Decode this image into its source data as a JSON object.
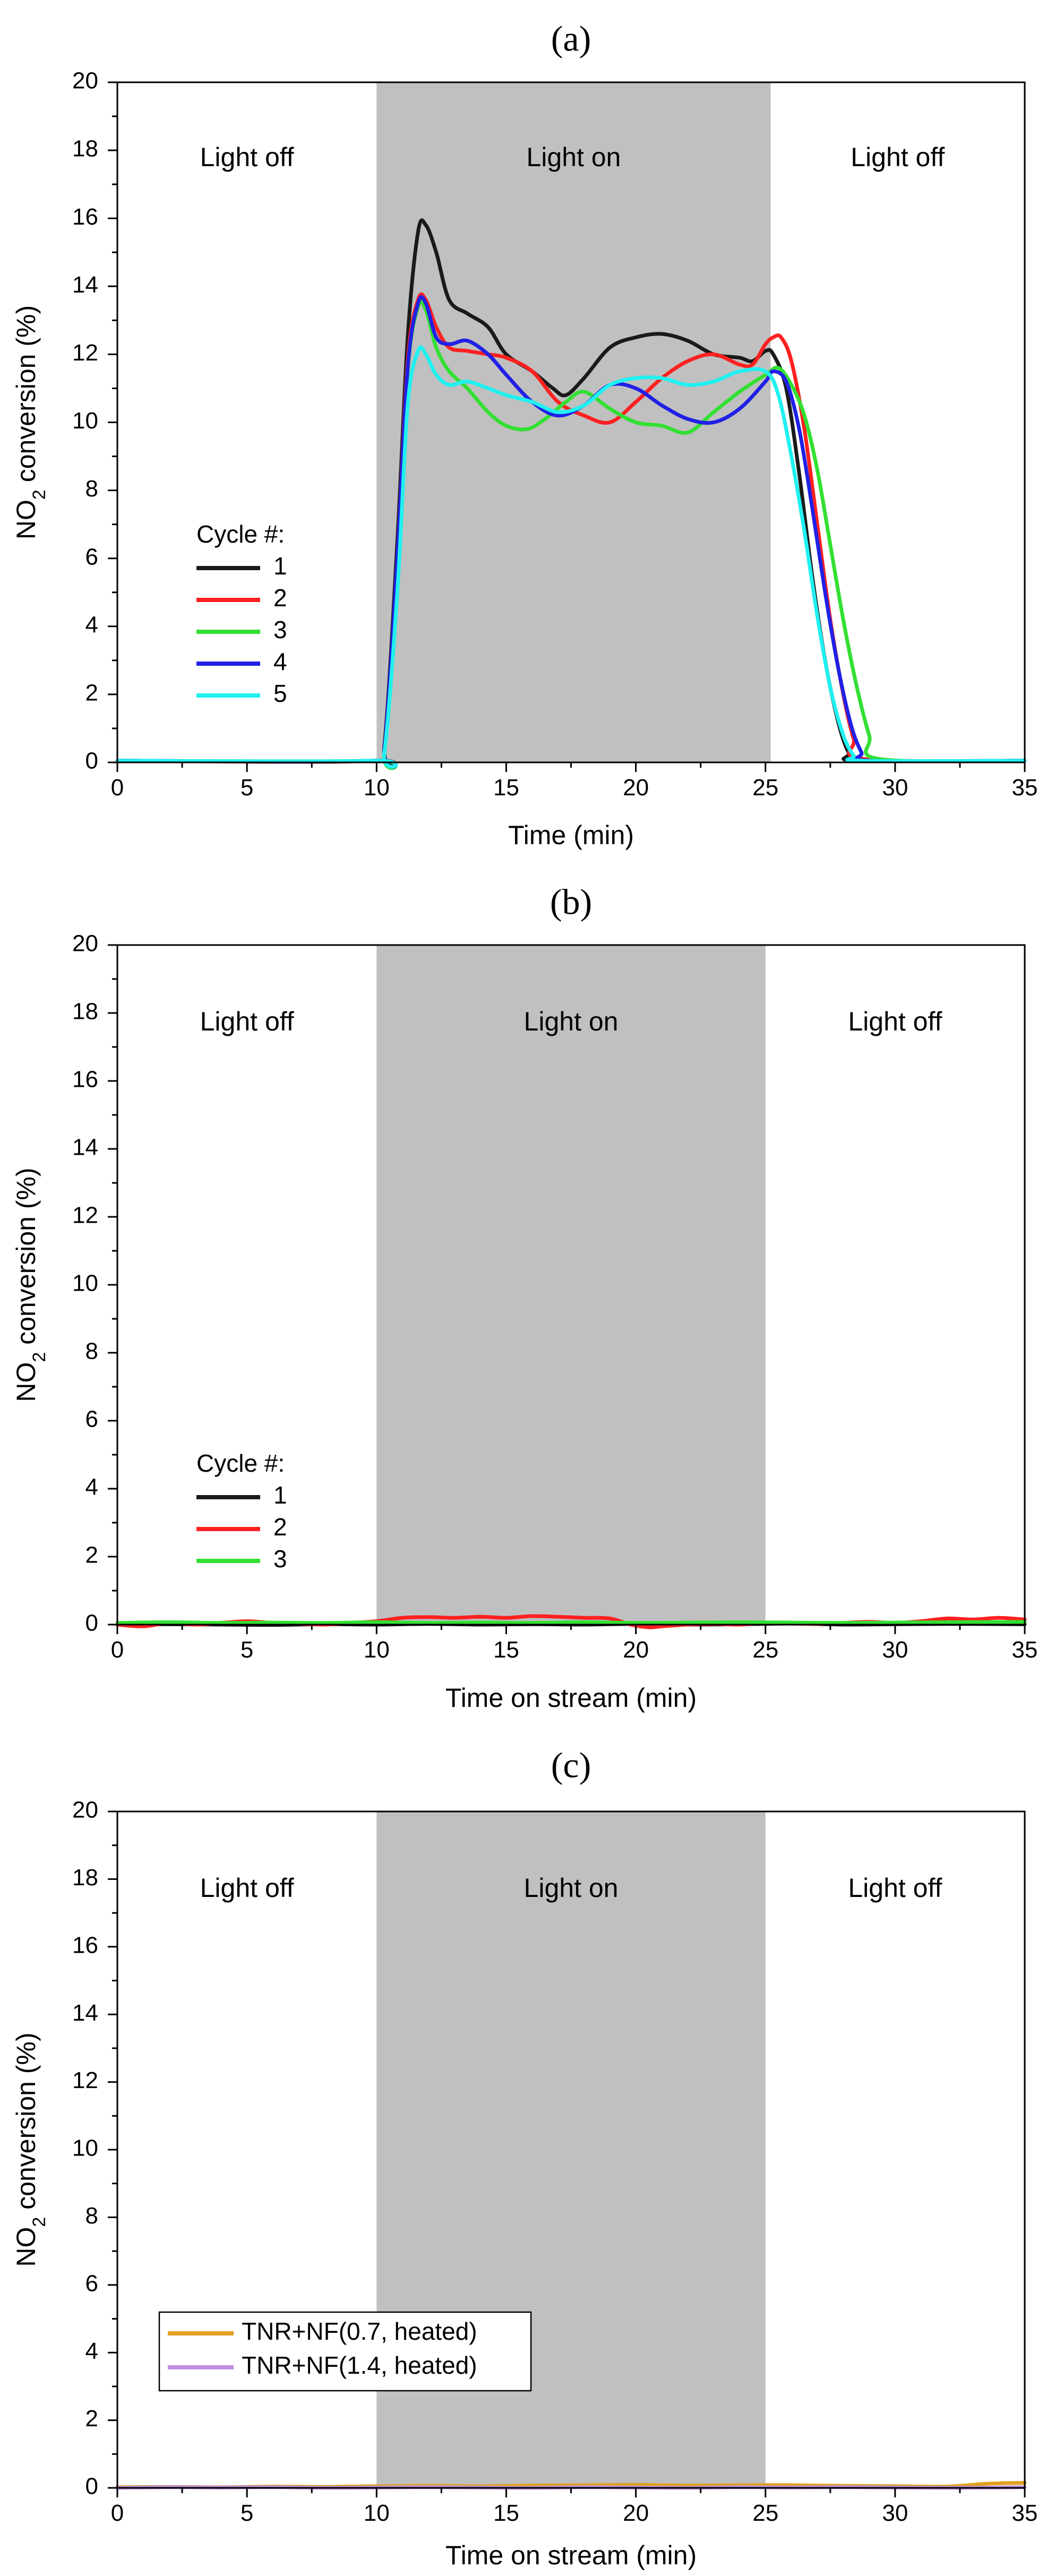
{
  "colors": {
    "shade": "#c0c0c0",
    "axis": "#000000",
    "cycle1": "#1a1a1a",
    "cycle2": "#ff2020",
    "cycle3": "#32e032",
    "cycle4": "#2020e6",
    "cycle5": "#20f0f0",
    "tnr07": "#e0a020",
    "tnr14": "#c090e0"
  },
  "chart_data": [
    {
      "panel": "(a)",
      "type": "line",
      "xlabel": "Time (min)",
      "ylabel": "NO2 conversion (%)",
      "xlim": [
        0,
        35
      ],
      "ylim": [
        0,
        20
      ],
      "xticks": [
        0,
        5,
        10,
        15,
        20,
        25,
        30,
        35
      ],
      "yticks": [
        0,
        2,
        4,
        6,
        8,
        10,
        12,
        14,
        16,
        18,
        20
      ],
      "shaded_region": {
        "x": [
          10,
          25.2
        ],
        "label": "Light on"
      },
      "region_labels": [
        "Light off",
        "Light on",
        "Light off"
      ],
      "legend_title": "Cycle #:",
      "series": [
        {
          "name": "1",
          "color_key": "cycle1",
          "x": [
            0,
            9.9,
            10.3,
            10.8,
            11.2,
            11.6,
            11.9,
            12.3,
            12.8,
            13.5,
            14.3,
            15.0,
            16.0,
            16.8,
            17.3,
            18.0,
            19.0,
            20.0,
            21.0,
            22.0,
            23.0,
            24.0,
            24.5,
            25.0,
            25.3,
            25.8,
            26.3,
            26.8,
            27.3,
            27.8,
            28.2,
            28.6,
            35
          ],
          "y": [
            0.05,
            0.05,
            0.5,
            6.5,
            12.5,
            15.6,
            15.8,
            15.0,
            13.6,
            13.2,
            12.8,
            12.0,
            11.5,
            11.0,
            10.8,
            11.3,
            12.2,
            12.5,
            12.6,
            12.4,
            12.0,
            11.9,
            11.8,
            12.1,
            12.0,
            11.0,
            8.5,
            5.5,
            3.0,
            1.2,
            0.3,
            0.05,
            0.05
          ]
        },
        {
          "name": "2",
          "color_key": "cycle2",
          "x": [
            0,
            9.9,
            10.3,
            10.8,
            11.2,
            11.6,
            11.9,
            12.3,
            12.8,
            13.5,
            14.3,
            15.0,
            16.0,
            17.0,
            18.0,
            19.0,
            20.0,
            21.0,
            22.0,
            23.0,
            24.0,
            24.5,
            25.0,
            25.3,
            25.6,
            26.0,
            26.5,
            27.0,
            27.5,
            28.0,
            28.4,
            28.8,
            35
          ],
          "y": [
            0.05,
            0.05,
            0.4,
            6.0,
            11.8,
            13.6,
            13.6,
            12.8,
            12.2,
            12.1,
            12.0,
            11.9,
            11.5,
            10.6,
            10.2,
            10.0,
            10.6,
            11.3,
            11.8,
            12.0,
            11.7,
            11.7,
            12.3,
            12.5,
            12.5,
            11.8,
            9.8,
            7.0,
            4.2,
            2.0,
            0.7,
            0.1,
            0.05
          ]
        },
        {
          "name": "3",
          "color_key": "cycle3",
          "x": [
            0,
            9.9,
            10.3,
            10.8,
            11.2,
            11.6,
            11.9,
            12.3,
            12.8,
            13.5,
            14.3,
            15.0,
            15.8,
            16.5,
            17.3,
            18.0,
            19.0,
            20.0,
            21.0,
            22.0,
            23.0,
            24.0,
            25.0,
            25.5,
            26.0,
            26.5,
            27.0,
            27.5,
            28.0,
            28.5,
            29.0,
            29.4,
            35
          ],
          "y": [
            0.05,
            0.05,
            0.3,
            5.5,
            11.5,
            13.4,
            13.3,
            12.2,
            11.5,
            11.0,
            10.3,
            9.9,
            9.8,
            10.1,
            10.6,
            10.9,
            10.4,
            10.0,
            9.9,
            9.7,
            10.3,
            10.9,
            11.4,
            11.6,
            11.1,
            10.2,
            8.6,
            6.4,
            4.2,
            2.3,
            0.8,
            0.1,
            0.05
          ]
        },
        {
          "name": "4",
          "color_key": "cycle4",
          "x": [
            0,
            9.9,
            10.3,
            10.8,
            11.2,
            11.6,
            11.9,
            12.3,
            12.8,
            13.5,
            14.3,
            15.0,
            16.0,
            17.0,
            18.0,
            19.0,
            20.0,
            21.0,
            22.0,
            23.0,
            24.0,
            25.0,
            25.3,
            25.8,
            26.3,
            26.8,
            27.3,
            27.8,
            28.3,
            28.7,
            29.0,
            35
          ],
          "y": [
            0.05,
            0.05,
            0.4,
            6.0,
            11.6,
            13.5,
            13.5,
            12.5,
            12.3,
            12.4,
            12.0,
            11.4,
            10.6,
            10.2,
            10.5,
            11.1,
            11.0,
            10.5,
            10.1,
            10.0,
            10.4,
            11.2,
            11.5,
            11.2,
            9.8,
            7.5,
            5.0,
            2.8,
            1.1,
            0.3,
            0.05,
            0.05
          ]
        },
        {
          "name": "5",
          "color_key": "cycle5",
          "x": [
            0,
            9.9,
            10.3,
            10.8,
            11.2,
            11.6,
            11.9,
            12.3,
            12.8,
            13.5,
            14.3,
            15.0,
            16.0,
            17.0,
            18.0,
            19.0,
            20.0,
            21.0,
            22.0,
            23.0,
            24.0,
            25.0,
            25.5,
            26.0,
            26.5,
            27.0,
            27.5,
            28.0,
            28.4,
            28.7,
            35
          ],
          "y": [
            0.05,
            0.05,
            0.3,
            5.0,
            10.5,
            12.1,
            12.0,
            11.4,
            11.1,
            11.2,
            11.0,
            10.8,
            10.6,
            10.3,
            10.5,
            11.1,
            11.3,
            11.3,
            11.1,
            11.2,
            11.5,
            11.5,
            10.8,
            9.0,
            6.8,
            4.3,
            2.2,
            0.8,
            0.2,
            0.05,
            0.05
          ]
        }
      ]
    },
    {
      "panel": "(b)",
      "type": "line",
      "xlabel": "Time on stream (min)",
      "ylabel": "NO2 conversion (%)",
      "xlim": [
        0,
        35
      ],
      "ylim": [
        0,
        20
      ],
      "xticks": [
        0,
        5,
        10,
        15,
        20,
        25,
        30,
        35
      ],
      "yticks": [
        0,
        2,
        4,
        6,
        8,
        10,
        12,
        14,
        16,
        18,
        20
      ],
      "shaded_region": {
        "x": [
          10,
          25
        ],
        "label": "Light on"
      },
      "region_labels": [
        "Light off",
        "Light on",
        "Light off"
      ],
      "legend_title": "Cycle #:",
      "series": [
        {
          "name": "1",
          "color_key": "cycle1",
          "x": [
            0,
            2,
            4,
            6,
            8,
            10,
            12,
            14,
            16,
            18,
            20,
            22,
            24,
            26,
            28,
            30,
            32,
            35
          ],
          "y": [
            0.0,
            0.01,
            0.0,
            -0.01,
            0.01,
            0.0,
            0.02,
            0.0,
            0.01,
            0.0,
            0.02,
            0.0,
            0.01,
            0.03,
            0.0,
            0.01,
            0.02,
            0.01
          ]
        },
        {
          "name": "2",
          "color_key": "cycle2",
          "x": [
            0,
            1,
            2,
            3,
            4,
            5,
            6,
            7,
            8,
            9,
            10,
            11,
            12,
            13,
            14,
            15,
            16,
            17,
            18,
            19,
            19.8,
            20.5,
            21,
            22,
            23,
            24,
            25,
            26,
            27,
            28,
            29,
            30,
            31,
            32,
            33,
            34,
            35
          ],
          "y": [
            0.0,
            -0.05,
            0.05,
            0.0,
            0.05,
            0.1,
            0.05,
            0.03,
            0.0,
            0.05,
            0.1,
            0.2,
            0.22,
            0.2,
            0.23,
            0.2,
            0.25,
            0.23,
            0.2,
            0.18,
            0.0,
            -0.08,
            -0.05,
            0.0,
            0.02,
            0.0,
            0.05,
            0.03,
            0.02,
            0.05,
            0.08,
            0.05,
            0.1,
            0.18,
            0.15,
            0.2,
            0.15
          ]
        },
        {
          "name": "3",
          "color_key": "cycle3",
          "x": [
            0,
            2,
            4,
            6,
            8,
            10,
            12,
            14,
            16,
            18,
            20,
            22,
            24,
            26,
            28,
            30,
            32,
            35
          ],
          "y": [
            0.05,
            0.07,
            0.05,
            0.06,
            0.05,
            0.07,
            0.05,
            0.06,
            0.05,
            0.07,
            0.05,
            0.06,
            0.07,
            0.06,
            0.05,
            0.06,
            0.07,
            0.08
          ]
        }
      ]
    },
    {
      "panel": "(c)",
      "type": "line",
      "xlabel": "Time on stream (min)",
      "ylabel": "NO2 conversion (%)",
      "xlim": [
        0,
        35
      ],
      "ylim": [
        0,
        20
      ],
      "xticks": [
        0,
        5,
        10,
        15,
        20,
        25,
        30,
        35
      ],
      "yticks": [
        0,
        2,
        4,
        6,
        8,
        10,
        12,
        14,
        16,
        18,
        20
      ],
      "shaded_region": {
        "x": [
          10,
          25
        ],
        "label": "Light on"
      },
      "region_labels": [
        "Light off",
        "Light on",
        "Light off"
      ],
      "legend_title": "",
      "series": [
        {
          "name": "TNR+NF(0.7, heated)",
          "color_key": "tnr07",
          "x": [
            0,
            2,
            4,
            6,
            8,
            10,
            12,
            14,
            16,
            18,
            20,
            22,
            24,
            26,
            28,
            30,
            32,
            33.5,
            35
          ],
          "y": [
            0.02,
            0.03,
            0.02,
            0.04,
            0.03,
            0.05,
            0.06,
            0.05,
            0.07,
            0.08,
            0.09,
            0.07,
            0.08,
            0.08,
            0.06,
            0.05,
            0.04,
            0.12,
            0.15
          ]
        },
        {
          "name": "TNR+NF(1.4, heated)",
          "color_key": "tnr14",
          "x": [
            0,
            2,
            4,
            6,
            8,
            10,
            12,
            14,
            16,
            18,
            20,
            22,
            24,
            26,
            28,
            30,
            32,
            34,
            35
          ],
          "y": [
            0.0,
            0.02,
            0.01,
            0.02,
            0.0,
            0.01,
            0.02,
            0.01,
            0.0,
            0.02,
            0.01,
            0.0,
            0.02,
            0.01,
            0.02,
            0.01,
            0.0,
            0.01,
            0.02
          ]
        }
      ]
    }
  ]
}
